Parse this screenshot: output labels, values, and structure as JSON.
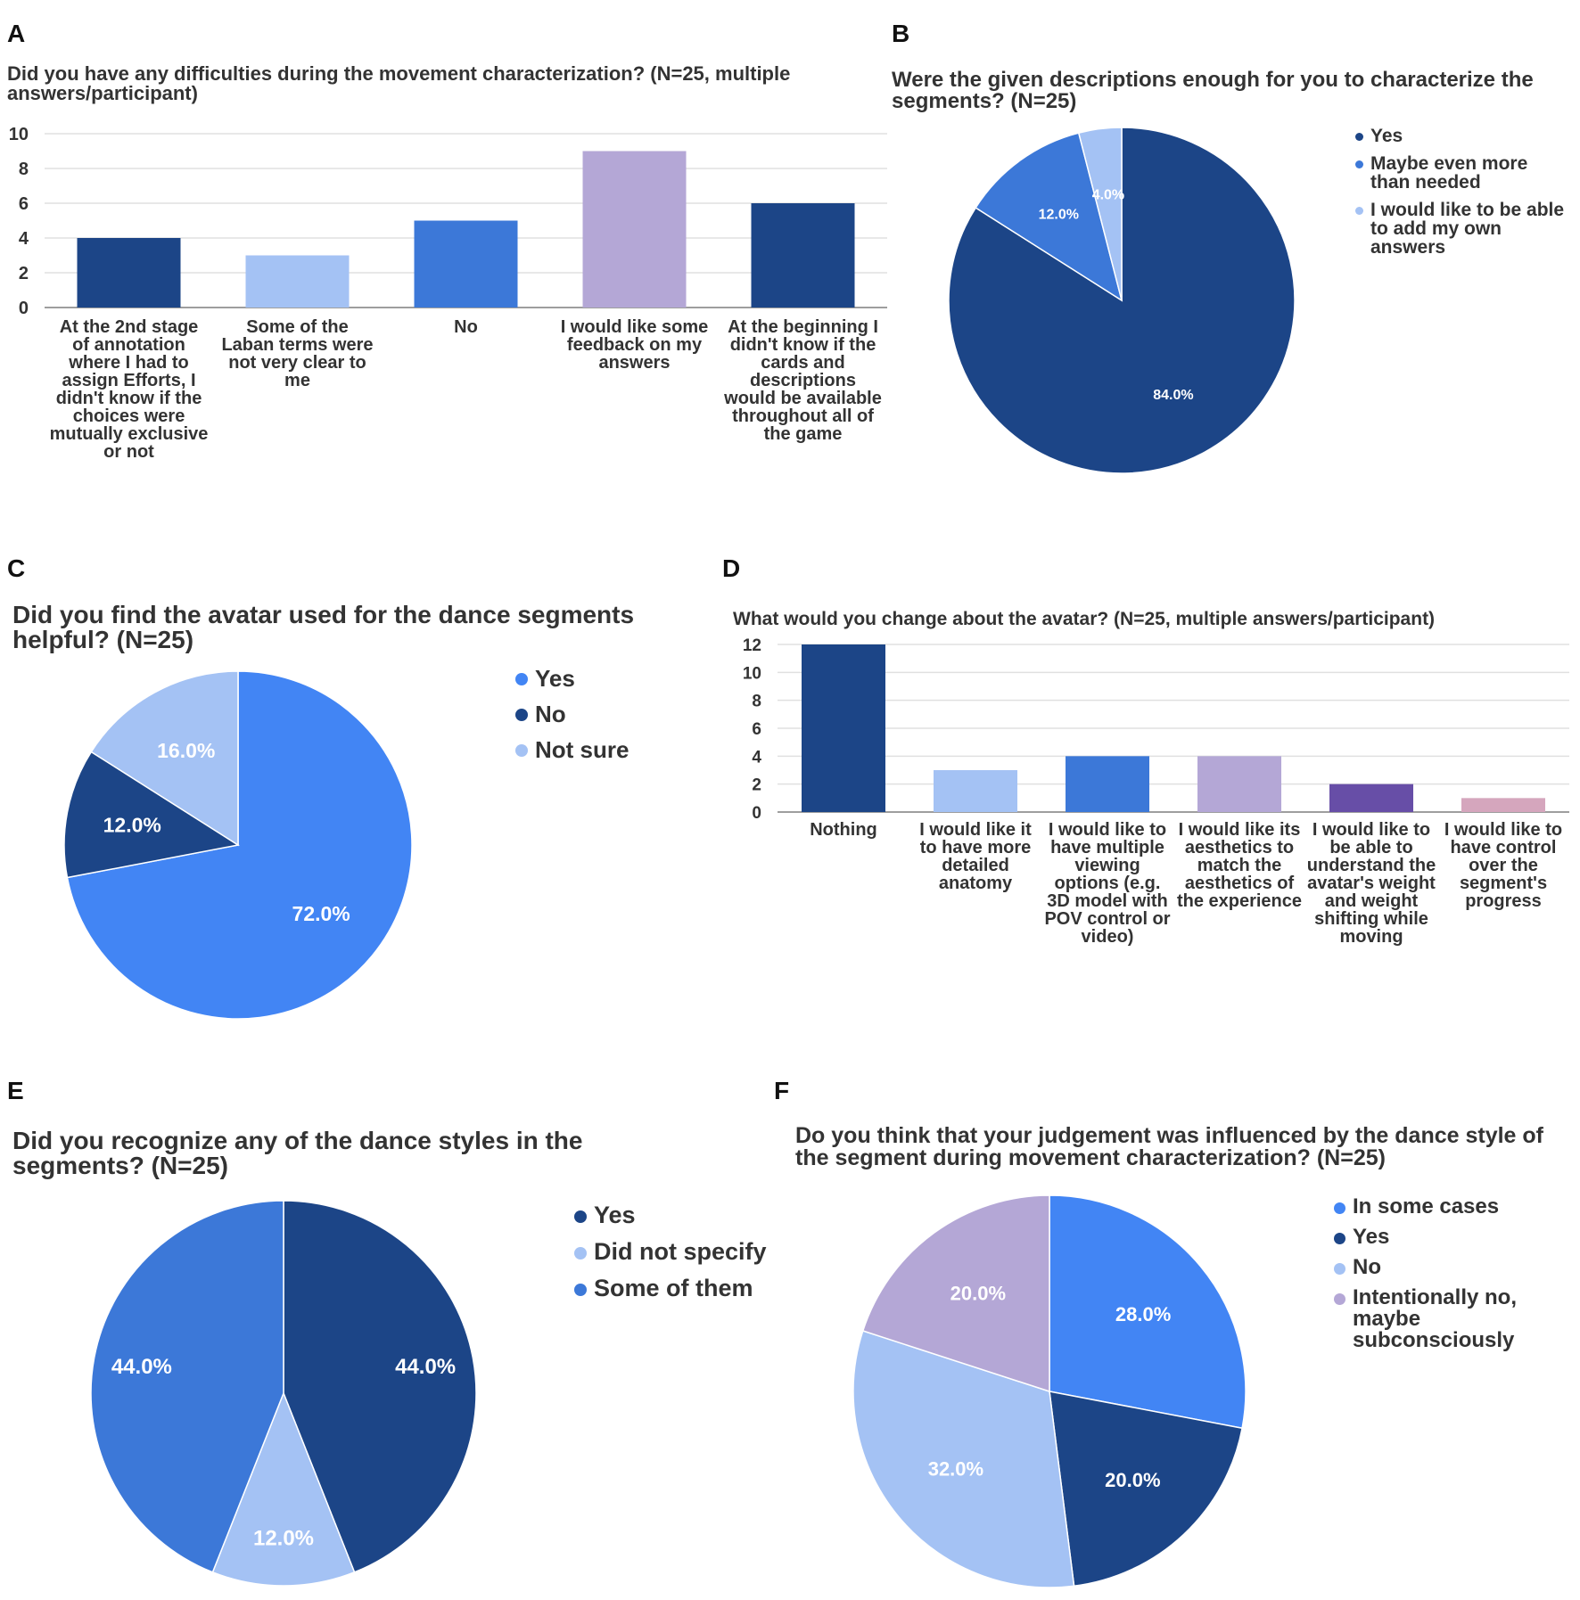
{
  "colors": {
    "dark_blue": "#1c4587",
    "light_blue": "#a4c2f4",
    "mid_blue": "#3c78d8",
    "bright_blue": "#4285f4",
    "lavender": "#b4a7d6",
    "purple": "#674ea7",
    "pink": "#d5a6bd",
    "grid": "#e0e0e0",
    "axis": "#9e9e9e"
  },
  "chart_data": [
    {
      "panel": "A",
      "type": "bar",
      "title": "Did you have any difficulties during the movement characterization? (N=25, multiple answers/participant)",
      "categories": [
        "At the 2nd stage of annotation where I had to assign Efforts, I didn't know if the choices were mutually exclusive or not",
        "Some of the Laban terms were not very clear to me",
        "No",
        "I would like some feedback on my answers",
        "At the beginning I didn't know if the cards and descriptions would be available throughout all of the game"
      ],
      "values": [
        4,
        3,
        5,
        9,
        6
      ],
      "bar_colors": [
        "#1c4587",
        "#a4c2f4",
        "#3c78d8",
        "#b4a7d6",
        "#1c4587"
      ],
      "ylim": [
        0,
        10
      ],
      "yticks": [
        0,
        2,
        4,
        6,
        8,
        10
      ],
      "grid": true
    },
    {
      "panel": "B",
      "type": "pie",
      "title": "Were the given descriptions enough for you to characterize the segments? (N=25)",
      "labels": [
        "Yes",
        "Maybe even more than needed",
        "I would like to be able to add my own answers"
      ],
      "values": [
        84.0,
        12.0,
        4.0
      ],
      "value_labels": [
        "84.0%",
        "12.0%",
        "4.0%"
      ],
      "slice_colors": [
        "#1c4587",
        "#3c78d8",
        "#a4c2f4"
      ],
      "legend": "right"
    },
    {
      "panel": "C",
      "type": "pie",
      "title": "Did you find the avatar used for the dance segments helpful? (N=25)",
      "labels": [
        "Yes",
        "No",
        "Not sure"
      ],
      "values": [
        72.0,
        12.0,
        16.0
      ],
      "value_labels": [
        "72.0%",
        "12.0%",
        "16.0%"
      ],
      "slice_colors": [
        "#4285f4",
        "#1c4587",
        "#a4c2f4"
      ],
      "legend": "right"
    },
    {
      "panel": "D",
      "type": "bar",
      "title": "What would you change about the avatar? (N=25, multiple answers/participant)",
      "categories": [
        "Nothing",
        "I would like it to have more detailed anatomy",
        "I would like to have multiple viewing options (e.g. 3D model with POV control or video)",
        "I would like its aesthetics to match the aesthetics of the experience",
        "I would like to be able to understand the avatar's weight and weight shifting while moving",
        "I would like to have control over the segment's progress"
      ],
      "values": [
        12,
        3,
        4,
        4,
        2,
        1
      ],
      "bar_colors": [
        "#1c4587",
        "#a4c2f4",
        "#3c78d8",
        "#b4a7d6",
        "#674ea7",
        "#d5a6bd"
      ],
      "ylim": [
        0,
        12
      ],
      "yticks": [
        0,
        2,
        4,
        6,
        8,
        10,
        12
      ],
      "grid": true
    },
    {
      "panel": "E",
      "type": "pie",
      "title": "Did you recognize any of the dance styles in the segments? (N=25)",
      "labels": [
        "Yes",
        "Did not specify",
        "Some of them"
      ],
      "values": [
        44.0,
        12.0,
        44.0
      ],
      "value_labels": [
        "44.0%",
        "12.0%",
        "44.0%"
      ],
      "slice_colors": [
        "#1c4587",
        "#a4c2f4",
        "#3c78d8"
      ],
      "legend": "right"
    },
    {
      "panel": "F",
      "type": "pie",
      "title": "Do you think that your judgement was influenced by the dance style of the segment during movement characterization? (N=25)",
      "labels": [
        "In some cases",
        "Yes",
        "No",
        "Intentionally no, maybe subconsciously"
      ],
      "values": [
        28.0,
        20.0,
        32.0,
        20.0
      ],
      "value_labels": [
        "28.0%",
        "20.0%",
        "32.0%",
        "20.0%"
      ],
      "slice_colors": [
        "#4285f4",
        "#1c4587",
        "#a4c2f4",
        "#b4a7d6"
      ],
      "legend": "right"
    }
  ]
}
